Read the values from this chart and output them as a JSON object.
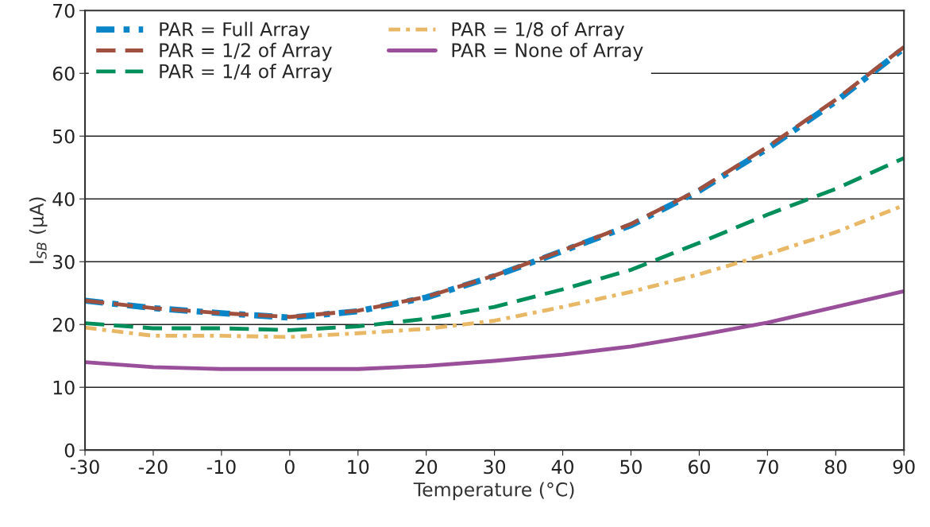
{
  "chart_data": {
    "type": "line",
    "xlabel": "Temperature (°C)",
    "ylabel": "I$_{SB}$ (μA)",
    "x": [
      -30,
      -20,
      -10,
      0,
      10,
      20,
      30,
      40,
      50,
      60,
      70,
      80,
      90
    ],
    "xlim": [
      -30,
      90
    ],
    "xticks": [
      -30,
      -20,
      -10,
      0,
      10,
      20,
      30,
      40,
      50,
      60,
      70,
      80,
      90
    ],
    "ylim": [
      0,
      70
    ],
    "yticks": [
      0,
      10,
      20,
      30,
      40,
      50,
      60,
      70
    ],
    "grid": "y",
    "legend": "top left",
    "marker": "none",
    "series": [
      {
        "name": "PAR = Full Array",
        "color": "#0a86c8",
        "line_style": "dashdot",
        "values": [
          23.8,
          22.6,
          21.8,
          21.1,
          22.1,
          24.3,
          27.7,
          31.7,
          35.8,
          41.3,
          48.0,
          55.5,
          64.0
        ]
      },
      {
        "name": "PAR = 1/2 of Array",
        "color": "#a0503f",
        "line_style": "dashed",
        "values": [
          23.8,
          22.6,
          21.8,
          21.2,
          22.2,
          24.4,
          27.8,
          31.8,
          36.0,
          41.5,
          48.3,
          55.8,
          64.2
        ]
      },
      {
        "name": "PAR = 1/4 of Array",
        "color": "#008f5a",
        "line_style": "dashed",
        "values": [
          20.2,
          19.4,
          19.4,
          19.1,
          19.7,
          20.9,
          22.8,
          25.6,
          28.7,
          33.0,
          37.5,
          41.6,
          46.5
        ]
      },
      {
        "name": "PAR = 1/8 of Array",
        "color": "#e8b866",
        "line_style": "dashdot",
        "values": [
          19.5,
          18.2,
          18.2,
          18.0,
          18.6,
          19.3,
          20.6,
          22.8,
          25.2,
          28.0,
          31.2,
          34.7,
          39.0
        ]
      },
      {
        "name": "PAR = None of Array",
        "color": "#9a4f9a",
        "line_style": "solid",
        "values": [
          14.0,
          13.2,
          12.9,
          12.9,
          12.9,
          13.4,
          14.2,
          15.2,
          16.5,
          18.3,
          20.3,
          22.8,
          25.3
        ]
      }
    ]
  }
}
